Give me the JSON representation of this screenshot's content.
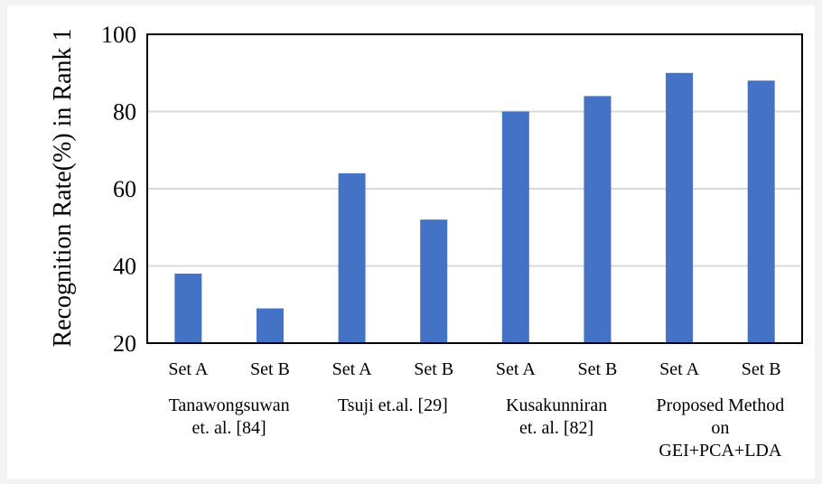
{
  "chart_data": {
    "type": "bar",
    "title": "",
    "xlabel": "",
    "ylabel": "Recognition Rate(%) in Rank 1",
    "ylim": [
      20,
      100
    ],
    "yticks": [
      20,
      40,
      60,
      80,
      100
    ],
    "grid": true,
    "categories": [
      "Set A",
      "Set B",
      "Set A",
      "Set B",
      "Set A",
      "Set B",
      "Set A",
      "Set B"
    ],
    "groups": [
      {
        "lines": [
          "Tanawongsuwan",
          "et. al. [84]"
        ]
      },
      {
        "lines": [
          "Tsuji et.al. [29]"
        ]
      },
      {
        "lines": [
          "Kusakunniran",
          "et. al. [82]"
        ]
      },
      {
        "lines": [
          "Proposed Method",
          "on",
          "GEI+PCA+LDA"
        ]
      }
    ],
    "values": [
      38,
      29,
      64,
      52,
      80,
      84,
      90,
      88
    ],
    "bar_color": "#4472c4"
  }
}
